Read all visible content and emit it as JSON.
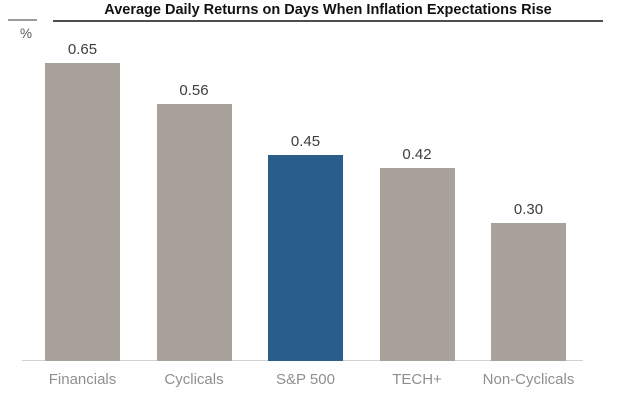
{
  "header": {
    "title": "Average Daily Returns on Days When Inflation Expectations Rise",
    "unit_label": "%"
  },
  "chart_data": {
    "type": "bar",
    "title": "Average Daily Returns on Days When Inflation Expectations Rise",
    "categories": [
      "Financials",
      "Cyclicals",
      "S&P 500",
      "TECH+",
      "Non-Cyclicals"
    ],
    "values": [
      0.65,
      0.56,
      0.45,
      0.42,
      0.3
    ],
    "value_labels": [
      "0.65",
      "0.56",
      "0.45",
      "0.42",
      "0.30"
    ],
    "xlabel": "",
    "ylabel": "%",
    "ylim": [
      0,
      0.7
    ],
    "grid": false,
    "legend_position": "none",
    "bar_colors": [
      "#a8a29b",
      "#a8a29b",
      "#285d8c",
      "#a8a29b",
      "#a8a29b"
    ],
    "highlight_category": "S&P 500"
  },
  "colors": {
    "bar_default": "#a8a29b",
    "bar_highlight": "#285d8c",
    "title_text": "#121212",
    "title_rule": "#4d4d4d",
    "unit_rule": "#9b9b9b",
    "unit_text": "#58595b",
    "value_label": "#3d3d3d",
    "category_label": "#8f8f8f",
    "baseline": "#d2d1d0",
    "background": "#ffffff"
  }
}
